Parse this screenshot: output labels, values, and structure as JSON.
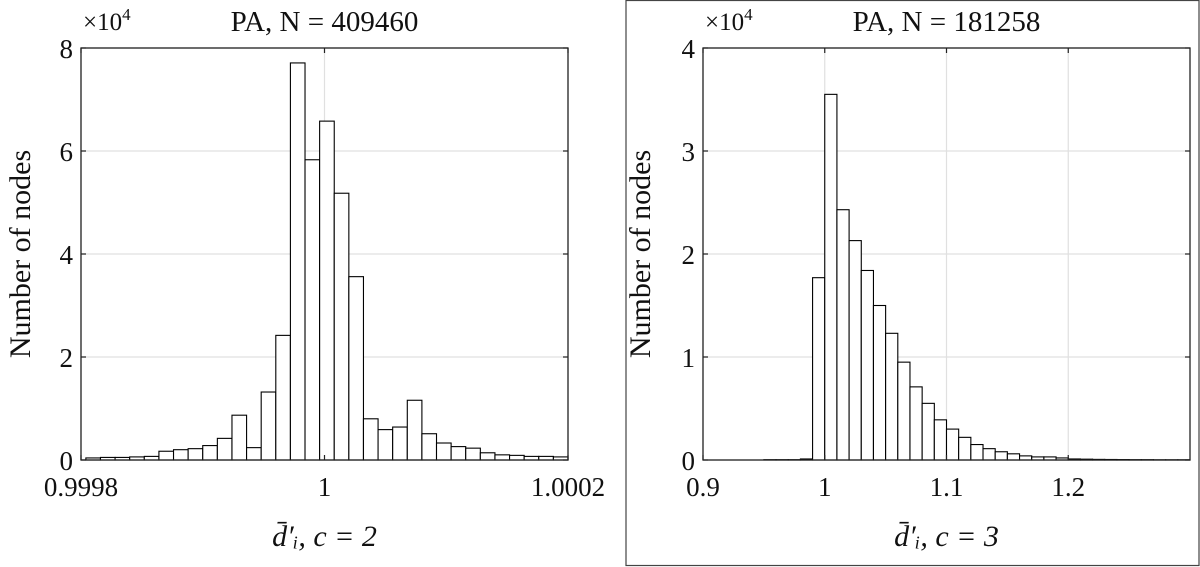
{
  "chart_data": [
    {
      "type": "bar",
      "subtype": "histogram",
      "title": "PA, N = 409460",
      "y_multiplier": "×10",
      "y_multiplier_exp": "4",
      "xlabel": "d̄′ᵢ, c = 2",
      "ylabel": "Number of nodes",
      "xlim": [
        0.9998,
        1.0002
      ],
      "ylim": [
        0,
        8
      ],
      "y_units": "×10^4",
      "xticks": [
        0.9998,
        1,
        1.0002
      ],
      "xtick_labels": [
        "0.9998",
        "1",
        "1.0002"
      ],
      "yticks": [
        0,
        2,
        4,
        6,
        8
      ],
      "ytick_labels": [
        "0",
        "2",
        "4",
        "6",
        "8"
      ],
      "grid": true,
      "bin_start": 0.999804,
      "bin_width": 1.2e-05,
      "values": [
        0.04,
        0.05,
        0.05,
        0.06,
        0.07,
        0.17,
        0.2,
        0.22,
        0.28,
        0.42,
        0.87,
        0.24,
        1.32,
        2.42,
        7.71,
        5.83,
        6.58,
        5.18,
        3.56,
        0.8,
        0.59,
        0.64,
        1.16,
        0.51,
        0.33,
        0.26,
        0.23,
        0.14,
        0.1,
        0.09,
        0.07,
        0.07,
        0.06
      ]
    },
    {
      "type": "bar",
      "subtype": "histogram",
      "title": "PA, N = 181258",
      "y_multiplier": "×10",
      "y_multiplier_exp": "4",
      "xlabel": "d̄′ᵢ, c = 3",
      "ylabel": "Number of nodes",
      "xlim": [
        0.9,
        1.3
      ],
      "ylim": [
        0,
        4
      ],
      "y_units": "×10^4",
      "xticks": [
        0.9,
        1,
        1.1,
        1.2
      ],
      "xtick_labels": [
        "0.9",
        "1",
        "1.1",
        "1.2"
      ],
      "yticks": [
        0,
        1,
        2,
        3,
        4
      ],
      "ytick_labels": [
        "0",
        "1",
        "2",
        "3",
        "4"
      ],
      "grid": true,
      "bin_start": 0.95,
      "bin_width": 0.01,
      "values": [
        0.003,
        0.003,
        0.003,
        0.01,
        1.77,
        3.55,
        2.43,
        2.13,
        1.84,
        1.5,
        1.23,
        0.95,
        0.71,
        0.55,
        0.39,
        0.3,
        0.22,
        0.15,
        0.11,
        0.08,
        0.06,
        0.04,
        0.03,
        0.03,
        0.02,
        0.01,
        0.008,
        0.006,
        0.005,
        0.004,
        0.003,
        0.003,
        0.002,
        0.002,
        0.002
      ]
    }
  ],
  "colors": {
    "bar_fill": "#ffffff",
    "bar_edge": "#000000",
    "grid": "#e0e0e0"
  }
}
